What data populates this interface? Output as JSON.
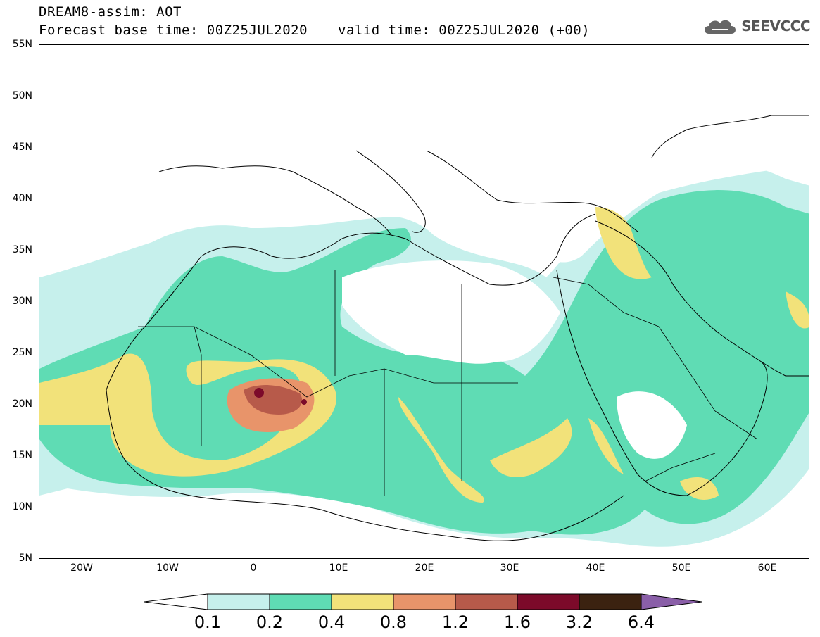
{
  "header": {
    "title": "DREAM8-assim: AOT",
    "base_time": "Forecast base time: 00Z25JUL2020",
    "valid_time": "valid time: 00Z25JUL2020 (+00)"
  },
  "logo": {
    "text": "SEEVCCC",
    "icon": "cloud-icon"
  },
  "map": {
    "variable": "AOT",
    "lon_range": [
      -25,
      65
    ],
    "lat_range": [
      5,
      55
    ],
    "lat_labels": [
      "55N",
      "50N",
      "45N",
      "40N",
      "35N",
      "30N",
      "25N",
      "20N",
      "15N",
      "10N",
      "5N"
    ],
    "lon_labels": [
      "20W",
      "10W",
      "0",
      "10E",
      "20E",
      "30E",
      "40E",
      "50E",
      "60E"
    ]
  },
  "colorbar": {
    "levels": [
      "0.1",
      "0.2",
      "0.4",
      "0.8",
      "1.2",
      "1.6",
      "3.2",
      "6.4"
    ],
    "colors": [
      "#c6f0ec",
      "#5fdcb4",
      "#f2e27a",
      "#e8946a",
      "#b75a4a",
      "#7c0a2a",
      "#3b2210",
      "#8a5fa8"
    ]
  }
}
